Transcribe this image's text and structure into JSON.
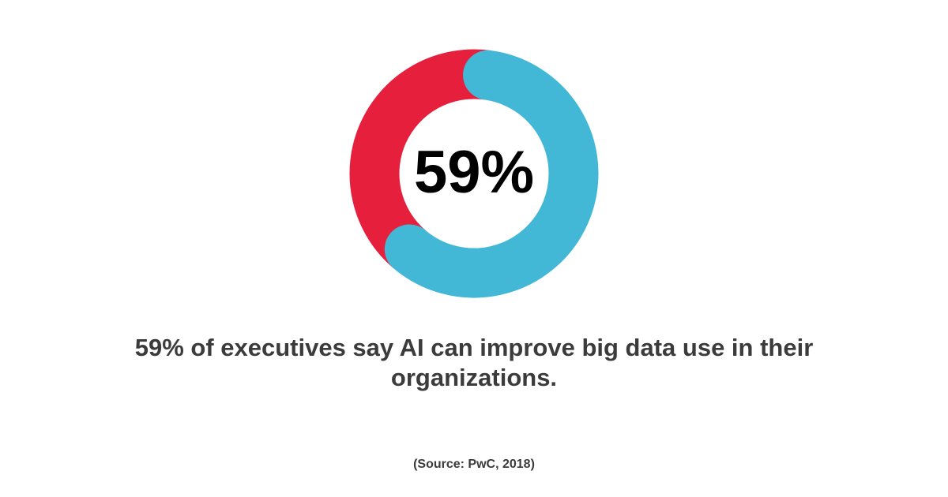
{
  "chart_data": {
    "type": "donut",
    "values": [
      59,
      41
    ],
    "value_labels": [
      "59%",
      null
    ],
    "colors": [
      "#43b8d6",
      "#e61f3d"
    ],
    "caption": "59% of executives say AI can improve big data use in their organizations.",
    "source": "(Source: PwC, 2018)"
  }
}
